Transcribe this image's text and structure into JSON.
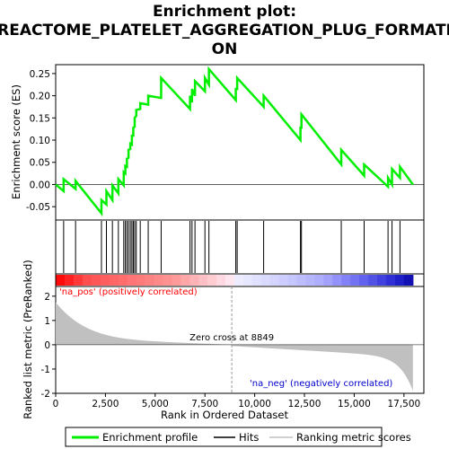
{
  "chart_data": {
    "type": "line",
    "title_lines": [
      "Enrichment plot:",
      "REACTOME_PLATELET_AGGREGATION_PLUG_FORMATI",
      "ON"
    ],
    "xlabel": "Rank in Ordered Dataset",
    "ylabel_top": "Enrichment score (ES)",
    "ylabel_bottom": "Ranked list metric (PreRanked)",
    "xlim": [
      0,
      18500
    ],
    "x_ticks": [
      0,
      2500,
      5000,
      7500,
      10000,
      12500,
      15000,
      17500
    ],
    "x_tick_labels": [
      "0",
      "2,500",
      "5,000",
      "7,500",
      "10,000",
      "12,500",
      "15,000",
      "17,500"
    ],
    "es_ylim": [
      -0.08,
      0.27
    ],
    "es_ticks": [
      -0.05,
      0.0,
      0.05,
      0.1,
      0.15,
      0.2,
      0.25
    ],
    "es_tick_labels": [
      "-0.05",
      "0.00",
      "0.05",
      "0.10",
      "0.15",
      "0.20",
      "0.25"
    ],
    "metric_ylim": [
      -2,
      2.4
    ],
    "metric_ticks": [
      -2,
      -1,
      0,
      1,
      2
    ],
    "metric_tick_labels": [
      "-2",
      "-1",
      "0",
      "1",
      "2"
    ],
    "hits": [
      400,
      1000,
      2300,
      2550,
      2850,
      3150,
      3420,
      3500,
      3580,
      3660,
      3750,
      3830,
      3900,
      3970,
      4050,
      4250,
      4650,
      5300,
      6750,
      6850,
      7000,
      7500,
      7700,
      9050,
      9120,
      10450,
      12300,
      12350,
      14350,
      15500,
      16700,
      16900,
      17300
    ],
    "es_curve": {
      "x": [
        0,
        400,
        1000,
        2300,
        2550,
        2850,
        3150,
        3420,
        3500,
        3580,
        3660,
        3750,
        3830,
        3900,
        3970,
        4050,
        4250,
        4650,
        5300,
        6750,
        6850,
        7000,
        7500,
        7700,
        9050,
        9120,
        10450,
        12300,
        12350,
        14350,
        15500,
        16700,
        16900,
        17300,
        17950
      ],
      "y_before": [
        0.0,
        -0.015,
        -0.01,
        -0.065,
        -0.045,
        -0.035,
        -0.02,
        -0.002,
        0.025,
        0.04,
        0.06,
        0.08,
        0.09,
        0.11,
        0.13,
        0.155,
        0.17,
        0.18,
        0.195,
        0.17,
        0.185,
        0.2,
        0.21,
        0.225,
        0.19,
        0.215,
        0.175,
        0.1,
        0.128,
        0.045,
        0.02,
        -0.005,
        0.0,
        0.015,
        0.0
      ],
      "y_after": [
        0.0,
        0.012,
        0.008,
        -0.035,
        -0.015,
        -0.002,
        0.012,
        0.028,
        0.042,
        0.058,
        0.078,
        0.092,
        0.11,
        0.128,
        0.15,
        0.168,
        0.183,
        0.2,
        0.24,
        0.2,
        0.215,
        0.233,
        0.24,
        0.26,
        0.215,
        0.24,
        0.2,
        0.128,
        0.158,
        0.078,
        0.045,
        0.015,
        0.035,
        0.04,
        0.0
      ]
    },
    "zero_cross": 8849,
    "zero_cross_label": "Zero cross at 8849",
    "pos_label": "'na_pos' (positively correlated)",
    "neg_label": "'na_neg' (negatively correlated)",
    "n_genes": 17950,
    "metric_max": 1.5,
    "metric_min": -1.9,
    "legend": [
      "Enrichment profile",
      "Hits",
      "Ranking metric scores"
    ],
    "colors": {
      "es_line": "#00ee00",
      "hits": "#000000",
      "metric_fill": "#c0c0c0",
      "pos_text": "#ff0000",
      "neg_text": "#0000cc",
      "zero_line": "#999999"
    }
  }
}
